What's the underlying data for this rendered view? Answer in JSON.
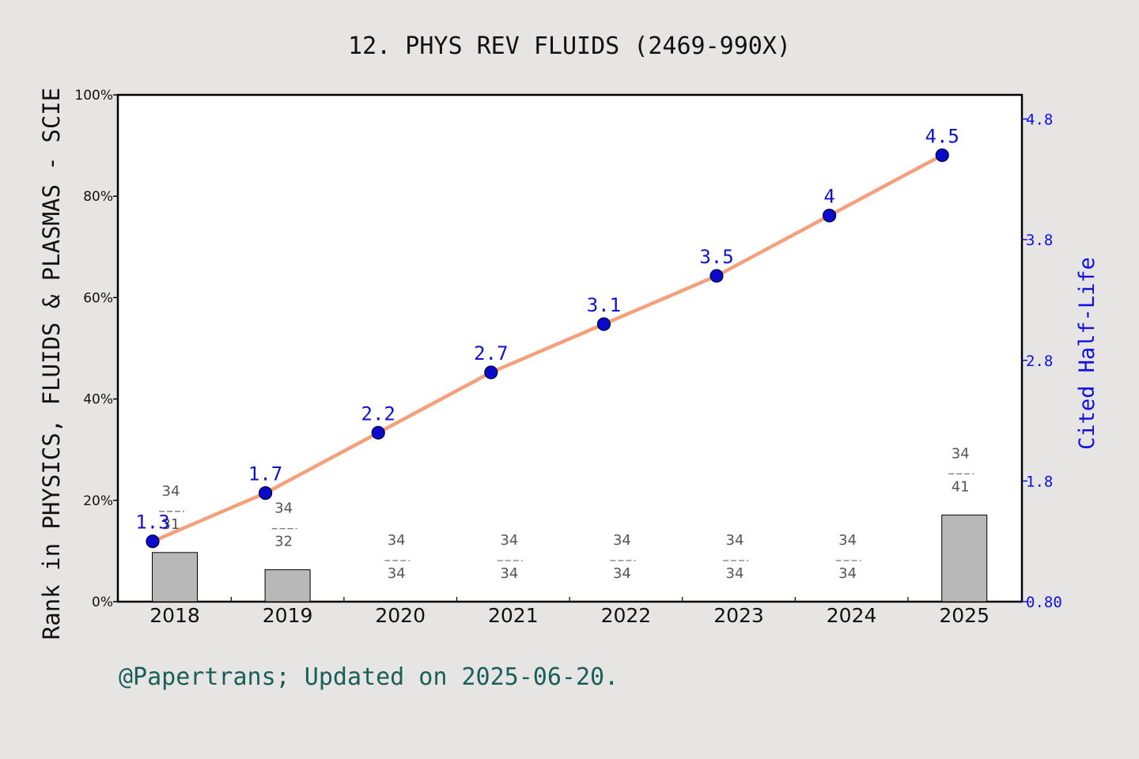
{
  "chart_data": {
    "type": "bar+line",
    "title": "12. PHYS REV FLUIDS (2469-990X)",
    "ylabel": "Rank in PHYSICS, FLUIDS & PLASMAS - SCIE",
    "y2label": "Cited Half-Life",
    "footer": "@Papertrans; Updated on 2025-06-20.",
    "categories": [
      "2018",
      "2019",
      "2020",
      "2021",
      "2022",
      "2023",
      "2024",
      "2025"
    ],
    "ylim": [
      0,
      100
    ],
    "yticks": [
      "0%",
      "20%",
      "40%",
      "60%",
      "80%",
      "100%"
    ],
    "ytick_values": [
      0,
      20,
      40,
      60,
      80,
      100
    ],
    "y2lim": [
      0.8,
      5.0
    ],
    "y2ticks": [
      "0.80",
      "1.8",
      "2.8",
      "3.8",
      "4.8"
    ],
    "y2tick_values": [
      0.8,
      1.8,
      2.8,
      3.8,
      4.8
    ],
    "rank_bars": {
      "values": [
        9.7,
        6.3,
        0,
        0,
        0,
        0,
        0,
        17.1
      ],
      "rank": [
        "34",
        "34",
        "34",
        "34",
        "34",
        "34",
        "34",
        "34"
      ],
      "total": [
        "31",
        "32",
        "34",
        "34",
        "34",
        "34",
        "34",
        "41"
      ],
      "color": "#b8b8b9"
    },
    "half_life": {
      "values": [
        1.3,
        1.7,
        2.2,
        2.7,
        3.1,
        3.5,
        4.0,
        4.5
      ],
      "labels": [
        "1.3",
        "1.7",
        "2.2",
        "2.7",
        "3.1",
        "3.5",
        "4",
        "4.5"
      ],
      "line_color": "#f4a07c",
      "marker_color": "#0a0acc"
    },
    "grid": false
  }
}
